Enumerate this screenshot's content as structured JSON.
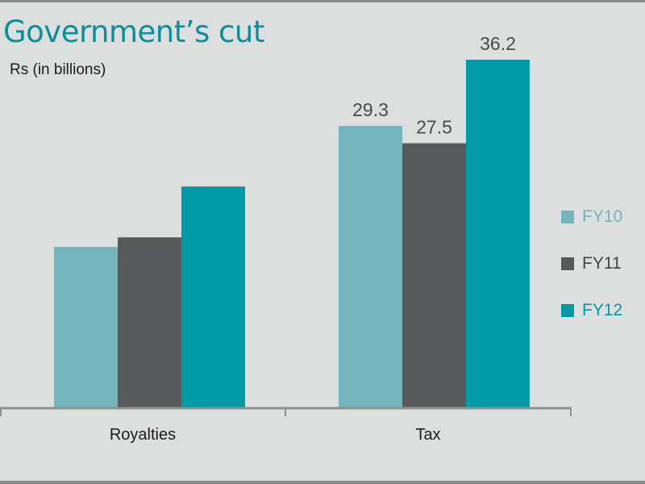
{
  "chart_data": {
    "type": "bar",
    "title": "Government’s cut",
    "ylabel": "Rs (in billions)",
    "xlabel": "",
    "categories": [
      "Royalties",
      "Tax"
    ],
    "series": [
      {
        "name": "FY10",
        "color": "#72b5bc",
        "values": [
          16.7,
          29.3
        ],
        "labels": [
          null,
          "29.3"
        ]
      },
      {
        "name": "FY11",
        "color": "#58595a",
        "values": [
          17.7,
          27.5
        ],
        "labels": [
          null,
          "27.5"
        ]
      },
      {
        "name": "FY12",
        "color": "#009aa8",
        "values": [
          23.0,
          36.2
        ],
        "labels": [
          null,
          "36.2"
        ]
      }
    ],
    "ylim": [
      0,
      36.2
    ],
    "grid": false,
    "legend_position": "right"
  }
}
